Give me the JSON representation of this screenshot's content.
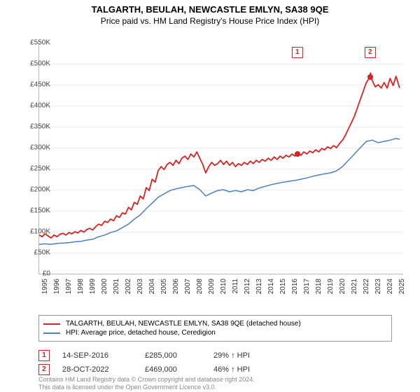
{
  "title": "TALGARTH, BEULAH, NEWCASTLE EMLYN, SA38 9QE",
  "subtitle": "Price paid vs. HM Land Registry's House Price Index (HPI)",
  "title_fontsize": 13,
  "subtitle_fontsize": 12,
  "chart": {
    "x_years": [
      1995,
      1996,
      1997,
      1998,
      1999,
      2000,
      2001,
      2002,
      2003,
      2004,
      2005,
      2006,
      2007,
      2008,
      2009,
      2010,
      2011,
      2012,
      2013,
      2014,
      2015,
      2016,
      2017,
      2018,
      2019,
      2020,
      2021,
      2022,
      2023,
      2024,
      2025
    ],
    "xlim": [
      1995,
      2025.6
    ],
    "ylim": [
      0,
      550000
    ],
    "ytick_step": 50000,
    "y_prefix": "£",
    "y_suffix": "K",
    "grid_color": "#eeeeee",
    "axis_color": "#bbbbbb",
    "tick_fontsize": 10,
    "series": [
      {
        "name": "price_paid",
        "legend": "TALGARTH, BEULAH, NEWCASTLE EMLYN, SA38 9QE (detached house)",
        "color": "#d62220",
        "line_width": 1.8,
        "data": [
          [
            1995,
            92000
          ],
          [
            1995.25,
            88000
          ],
          [
            1995.5,
            95000
          ],
          [
            1995.75,
            90000
          ],
          [
            1996,
            85000
          ],
          [
            1996.25,
            92000
          ],
          [
            1996.5,
            88000
          ],
          [
            1996.75,
            94000
          ],
          [
            1997,
            96000
          ],
          [
            1997.25,
            92000
          ],
          [
            1997.5,
            98000
          ],
          [
            1997.75,
            95000
          ],
          [
            1998,
            100000
          ],
          [
            1998.25,
            97000
          ],
          [
            1998.5,
            103000
          ],
          [
            1998.75,
            99000
          ],
          [
            1999,
            105000
          ],
          [
            1999.25,
            108000
          ],
          [
            1999.5,
            104000
          ],
          [
            1999.75,
            112000
          ],
          [
            2000,
            118000
          ],
          [
            2000.25,
            115000
          ],
          [
            2000.5,
            125000
          ],
          [
            2000.75,
            122000
          ],
          [
            2001,
            130000
          ],
          [
            2001.25,
            126000
          ],
          [
            2001.5,
            138000
          ],
          [
            2001.75,
            134000
          ],
          [
            2002,
            145000
          ],
          [
            2002.25,
            142000
          ],
          [
            2002.5,
            158000
          ],
          [
            2002.75,
            152000
          ],
          [
            2003,
            170000
          ],
          [
            2003.25,
            165000
          ],
          [
            2003.5,
            185000
          ],
          [
            2003.75,
            178000
          ],
          [
            2004,
            205000
          ],
          [
            2004.25,
            198000
          ],
          [
            2004.5,
            225000
          ],
          [
            2004.75,
            218000
          ],
          [
            2005,
            245000
          ],
          [
            2005.25,
            255000
          ],
          [
            2005.5,
            248000
          ],
          [
            2005.75,
            260000
          ],
          [
            2006,
            265000
          ],
          [
            2006.25,
            258000
          ],
          [
            2006.5,
            270000
          ],
          [
            2006.75,
            262000
          ],
          [
            2007,
            275000
          ],
          [
            2007.25,
            280000
          ],
          [
            2007.5,
            272000
          ],
          [
            2007.75,
            285000
          ],
          [
            2008,
            278000
          ],
          [
            2008.25,
            290000
          ],
          [
            2008.5,
            275000
          ],
          [
            2008.75,
            260000
          ],
          [
            2009,
            240000
          ],
          [
            2009.25,
            255000
          ],
          [
            2009.5,
            265000
          ],
          [
            2009.75,
            258000
          ],
          [
            2010,
            262000
          ],
          [
            2010.25,
            270000
          ],
          [
            2010.5,
            260000
          ],
          [
            2010.75,
            268000
          ],
          [
            2011,
            258000
          ],
          [
            2011.25,
            265000
          ],
          [
            2011.5,
            255000
          ],
          [
            2011.75,
            262000
          ],
          [
            2012,
            258000
          ],
          [
            2012.25,
            265000
          ],
          [
            2012.5,
            260000
          ],
          [
            2012.75,
            268000
          ],
          [
            2013,
            262000
          ],
          [
            2013.25,
            270000
          ],
          [
            2013.5,
            265000
          ],
          [
            2013.75,
            272000
          ],
          [
            2014,
            268000
          ],
          [
            2014.25,
            275000
          ],
          [
            2014.5,
            270000
          ],
          [
            2014.75,
            278000
          ],
          [
            2015,
            272000
          ],
          [
            2015.25,
            280000
          ],
          [
            2015.5,
            275000
          ],
          [
            2015.75,
            282000
          ],
          [
            2016,
            278000
          ],
          [
            2016.25,
            285000
          ],
          [
            2016.5,
            280000
          ],
          [
            2016.7,
            285000
          ],
          [
            2016.75,
            288000
          ],
          [
            2017,
            282000
          ],
          [
            2017.25,
            290000
          ],
          [
            2017.5,
            285000
          ],
          [
            2017.75,
            292000
          ],
          [
            2018,
            288000
          ],
          [
            2018.25,
            295000
          ],
          [
            2018.5,
            290000
          ],
          [
            2018.75,
            298000
          ],
          [
            2019,
            295000
          ],
          [
            2019.25,
            302000
          ],
          [
            2019.5,
            298000
          ],
          [
            2019.75,
            305000
          ],
          [
            2020,
            300000
          ],
          [
            2020.25,
            310000
          ],
          [
            2020.5,
            318000
          ],
          [
            2020.75,
            330000
          ],
          [
            2021,
            345000
          ],
          [
            2021.25,
            360000
          ],
          [
            2021.5,
            375000
          ],
          [
            2021.75,
            395000
          ],
          [
            2022,
            415000
          ],
          [
            2022.25,
            435000
          ],
          [
            2022.5,
            455000
          ],
          [
            2022.82,
            469000
          ],
          [
            2022.85,
            478000
          ],
          [
            2023,
            460000
          ],
          [
            2023.25,
            445000
          ],
          [
            2023.5,
            450000
          ],
          [
            2023.75,
            442000
          ],
          [
            2024,
            455000
          ],
          [
            2024.25,
            442000
          ],
          [
            2024.5,
            465000
          ],
          [
            2024.75,
            448000
          ],
          [
            2025,
            470000
          ],
          [
            2025.3,
            442000
          ]
        ]
      },
      {
        "name": "hpi",
        "legend": "HPI: Average price, detached house, Ceredigion",
        "color": "#4a7ec8",
        "line_width": 1.5,
        "data": [
          [
            1995,
            70000
          ],
          [
            1995.5,
            71000
          ],
          [
            1996,
            70000
          ],
          [
            1996.5,
            72000
          ],
          [
            1997,
            73000
          ],
          [
            1997.5,
            74000
          ],
          [
            1998,
            76000
          ],
          [
            1998.5,
            77000
          ],
          [
            1999,
            80000
          ],
          [
            1999.5,
            82000
          ],
          [
            2000,
            88000
          ],
          [
            2000.5,
            92000
          ],
          [
            2001,
            98000
          ],
          [
            2001.5,
            102000
          ],
          [
            2002,
            110000
          ],
          [
            2002.5,
            118000
          ],
          [
            2003,
            130000
          ],
          [
            2003.5,
            140000
          ],
          [
            2004,
            155000
          ],
          [
            2004.5,
            168000
          ],
          [
            2005,
            182000
          ],
          [
            2005.5,
            190000
          ],
          [
            2006,
            198000
          ],
          [
            2006.5,
            202000
          ],
          [
            2007,
            205000
          ],
          [
            2007.5,
            208000
          ],
          [
            2008,
            210000
          ],
          [
            2008.5,
            200000
          ],
          [
            2009,
            185000
          ],
          [
            2009.5,
            192000
          ],
          [
            2010,
            198000
          ],
          [
            2010.5,
            200000
          ],
          [
            2011,
            195000
          ],
          [
            2011.5,
            198000
          ],
          [
            2012,
            195000
          ],
          [
            2012.5,
            200000
          ],
          [
            2013,
            198000
          ],
          [
            2013.5,
            204000
          ],
          [
            2014,
            208000
          ],
          [
            2014.5,
            212000
          ],
          [
            2015,
            215000
          ],
          [
            2015.5,
            218000
          ],
          [
            2016,
            220000
          ],
          [
            2016.5,
            222000
          ],
          [
            2017,
            225000
          ],
          [
            2017.5,
            228000
          ],
          [
            2018,
            232000
          ],
          [
            2018.5,
            235000
          ],
          [
            2019,
            238000
          ],
          [
            2019.5,
            240000
          ],
          [
            2020,
            245000
          ],
          [
            2020.5,
            255000
          ],
          [
            2021,
            270000
          ],
          [
            2021.5,
            285000
          ],
          [
            2022,
            300000
          ],
          [
            2022.5,
            315000
          ],
          [
            2023,
            318000
          ],
          [
            2023.5,
            312000
          ],
          [
            2024,
            315000
          ],
          [
            2024.5,
            318000
          ],
          [
            2025,
            322000
          ],
          [
            2025.3,
            320000
          ]
        ]
      }
    ],
    "markers": [
      {
        "n": 1,
        "x": 2016.7,
        "y": 285000,
        "color": "#d62220"
      },
      {
        "n": 2,
        "x": 2022.82,
        "y": 469000,
        "color": "#d62220"
      }
    ]
  },
  "legend_border": "#999999",
  "legend_fontsize": 10,
  "data_rows": [
    {
      "n": 1,
      "date": "14-SEP-2016",
      "price": "£285,000",
      "delta": "29% ↑ HPI",
      "color": "#d62220"
    },
    {
      "n": 2,
      "date": "28-OCT-2022",
      "price": "£469,000",
      "delta": "46% ↑ HPI",
      "color": "#d62220"
    }
  ],
  "data_row_fontsize": 11,
  "footer_line1": "Contains HM Land Registry data © Crown copyright and database right 2024.",
  "footer_line2": "This data is licensed under the Open Government Licence v3.0.",
  "footer_color": "#888888",
  "footer_fontsize": 9
}
